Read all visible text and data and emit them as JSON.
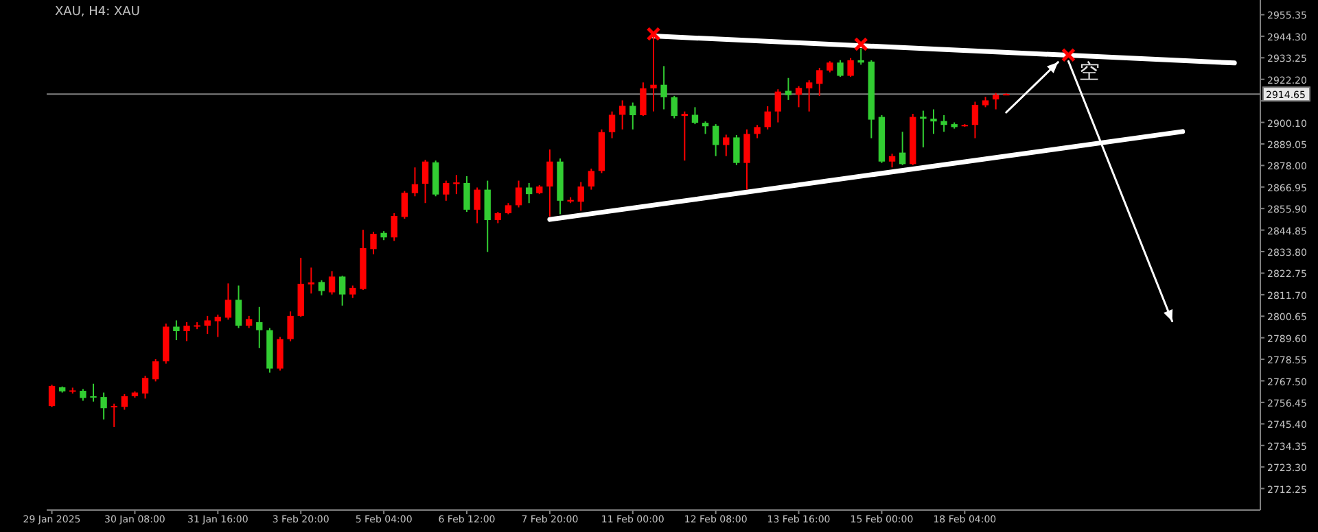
{
  "chart_data": {
    "type": "candlestick",
    "title": "XAU, H4: XAU",
    "categories": [
      "29 Jan 2025",
      null,
      null,
      null,
      null,
      null,
      null,
      null,
      "30 Jan 08:00",
      null,
      null,
      null,
      null,
      null,
      null,
      null,
      "31 Jan 16:00",
      null,
      null,
      null,
      null,
      null,
      null,
      null,
      "3 Feb 20:00",
      null,
      null,
      null,
      null,
      null,
      null,
      null,
      "5 Feb 04:00",
      null,
      null,
      null,
      null,
      null,
      null,
      null,
      "6 Feb 12:00",
      null,
      null,
      null,
      null,
      null,
      null,
      null,
      "7 Feb 20:00",
      null,
      null,
      null,
      null,
      null,
      null,
      null,
      "11 Feb 00:00",
      null,
      null,
      null,
      null,
      null,
      null,
      null,
      "12 Feb 08:00",
      null,
      null,
      null,
      null,
      null,
      null,
      null,
      "13 Feb 16:00",
      null,
      null,
      null,
      null,
      null,
      null,
      null,
      "15 Feb 00:00",
      null,
      null,
      null,
      null,
      null,
      null,
      null,
      "18 Feb 04:00",
      null,
      null,
      null,
      null,
      null,
      null,
      null,
      null,
      null,
      null,
      null,
      null,
      null,
      null,
      null,
      null,
      null,
      null,
      null,
      null,
      null,
      null,
      null,
      null,
      null,
      null,
      null,
      null
    ],
    "ohlc": [
      [
        2754.6,
        2765.5,
        2754.0,
        2764.9
      ],
      [
        2764.2,
        2764.6,
        2761.5,
        2762.1
      ],
      [
        2762.2,
        2764.0,
        2761.0,
        2762.6
      ],
      [
        2762.4,
        2763.3,
        2757.3,
        2758.7
      ],
      [
        2759.6,
        2766.0,
        2756.9,
        2758.9
      ],
      [
        2759.2,
        2761.5,
        2747.7,
        2753.5
      ],
      [
        2753.9,
        2755.8,
        2743.8,
        2754.6
      ],
      [
        2754.1,
        2760.7,
        2752.7,
        2759.6
      ],
      [
        2759.6,
        2762.1,
        2758.9,
        2761.5
      ],
      [
        2761.0,
        2770.1,
        2758.4,
        2769.0
      ],
      [
        2768.3,
        2778.6,
        2767.2,
        2777.5
      ],
      [
        2777.5,
        2796.9,
        2776.3,
        2795.3
      ],
      [
        2795.3,
        2798.5,
        2788.4,
        2793.0
      ],
      [
        2793.0,
        2797.6,
        2787.9,
        2795.8
      ],
      [
        2795.6,
        2797.6,
        2794.0,
        2796.0
      ],
      [
        2795.8,
        2800.8,
        2791.6,
        2798.5
      ],
      [
        2798.1,
        2801.5,
        2790.0,
        2800.4
      ],
      [
        2799.9,
        2817.5,
        2798.9,
        2809.1
      ],
      [
        2809.1,
        2816.4,
        2794.6,
        2795.8
      ],
      [
        2795.8,
        2800.8,
        2794.6,
        2799.2
      ],
      [
        2797.6,
        2805.4,
        2784.3,
        2793.5
      ],
      [
        2793.5,
        2794.6,
        2771.7,
        2773.8
      ],
      [
        2773.8,
        2790.0,
        2772.8,
        2788.9
      ],
      [
        2788.9,
        2803.1,
        2787.8,
        2800.8
      ],
      [
        2800.8,
        2830.6,
        2800.4,
        2817.3
      ],
      [
        2817.0,
        2825.6,
        2812.3,
        2818.0
      ],
      [
        2818.2,
        2819.1,
        2811.4,
        2813.6
      ],
      [
        2812.9,
        2823.8,
        2811.8,
        2821.0
      ],
      [
        2821.0,
        2821.4,
        2806.1,
        2811.8
      ],
      [
        2811.8,
        2816.4,
        2810.0,
        2815.2
      ],
      [
        2814.6,
        2845.0,
        2814.1,
        2835.6
      ],
      [
        2835.1,
        2844.0,
        2832.4,
        2842.9
      ],
      [
        2843.4,
        2844.3,
        2839.7,
        2841.1
      ],
      [
        2841.1,
        2853.5,
        2839.3,
        2852.1
      ],
      [
        2851.6,
        2864.9,
        2850.7,
        2864.0
      ],
      [
        2863.8,
        2877.0,
        2862.2,
        2868.4
      ],
      [
        2868.6,
        2880.9,
        2858.7,
        2880.0
      ],
      [
        2879.6,
        2880.5,
        2862.2,
        2863.1
      ],
      [
        2863.1,
        2870.2,
        2859.9,
        2869.0
      ],
      [
        2868.5,
        2873.1,
        2863.3,
        2869.3
      ],
      [
        2869.0,
        2872.5,
        2854.2,
        2855.3
      ],
      [
        2855.3,
        2866.7,
        2848.4,
        2865.6
      ],
      [
        2865.6,
        2870.2,
        2833.6,
        2850.0
      ],
      [
        2850.0,
        2854.2,
        2848.4,
        2853.5
      ],
      [
        2853.5,
        2858.7,
        2853.0,
        2857.6
      ],
      [
        2857.6,
        2870.2,
        2856.5,
        2866.7
      ],
      [
        2866.7,
        2869.0,
        2858.7,
        2863.3
      ],
      [
        2863.8,
        2867.9,
        2863.3,
        2867.2
      ],
      [
        2867.2,
        2886.2,
        2851.8,
        2880.0
      ],
      [
        2880.0,
        2881.6,
        2853.0,
        2859.9
      ],
      [
        2859.5,
        2861.7,
        2858.7,
        2860.3
      ],
      [
        2859.4,
        2869.5,
        2854.8,
        2867.2
      ],
      [
        2867.2,
        2876.4,
        2865.6,
        2875.2
      ],
      [
        2875.2,
        2896.5,
        2874.1,
        2895.1
      ],
      [
        2895.1,
        2905.7,
        2892.0,
        2904.0
      ],
      [
        2904.0,
        2911.4,
        2896.5,
        2908.6
      ],
      [
        2908.6,
        2910.3,
        2896.5,
        2903.8
      ],
      [
        2903.8,
        2920.6,
        2903.4,
        2917.6
      ],
      [
        2917.6,
        2945.5,
        2905.7,
        2919.4
      ],
      [
        2919.4,
        2929.0,
        2906.8,
        2913.0
      ],
      [
        2913.0,
        2913.7,
        2902.2,
        2903.4
      ],
      [
        2903.4,
        2905.7,
        2880.5,
        2904.5
      ],
      [
        2904.0,
        2907.9,
        2899.2,
        2899.9
      ],
      [
        2899.9,
        2900.6,
        2894.2,
        2898.1
      ],
      [
        2898.3,
        2899.2,
        2882.8,
        2888.5
      ],
      [
        2888.5,
        2893.8,
        2882.8,
        2892.4
      ],
      [
        2892.4,
        2893.6,
        2878.2,
        2879.3
      ],
      [
        2879.3,
        2896.5,
        2865.6,
        2894.2
      ],
      [
        2894.2,
        2898.8,
        2892.0,
        2897.7
      ],
      [
        2897.7,
        2908.4,
        2896.5,
        2905.7
      ],
      [
        2905.7,
        2917.1,
        2900.1,
        2915.9
      ],
      [
        2916.3,
        2922.9,
        2911.6,
        2914.1
      ],
      [
        2914.3,
        2918.7,
        2907.9,
        2917.8
      ],
      [
        2917.6,
        2921.7,
        2905.7,
        2920.6
      ],
      [
        2919.9,
        2928.1,
        2913.7,
        2926.9
      ],
      [
        2926.7,
        2931.5,
        2925.8,
        2930.8
      ],
      [
        2930.8,
        2932.0,
        2923.5,
        2924.0
      ],
      [
        2924.0,
        2933.1,
        2923.5,
        2932.0
      ],
      [
        2932.0,
        2938.0,
        2929.7,
        2930.8
      ],
      [
        2931.3,
        2932.0,
        2892.0,
        2901.5
      ],
      [
        2902.9,
        2903.8,
        2879.3,
        2880.0
      ],
      [
        2880.0,
        2884.0,
        2877.0,
        2882.8
      ],
      [
        2884.6,
        2895.3,
        2878.2,
        2878.7
      ],
      [
        2878.7,
        2904.5,
        2878.2,
        2902.9
      ],
      [
        2903.0,
        2906.1,
        2887.3,
        2902.0
      ],
      [
        2902.0,
        2906.8,
        2894.2,
        2900.6
      ],
      [
        2900.8,
        2903.8,
        2895.3,
        2898.8
      ],
      [
        2899.2,
        2900.1,
        2896.9,
        2897.7
      ],
      [
        2898.2,
        2899.2,
        2897.9,
        2898.8
      ],
      [
        2898.8,
        2910.7,
        2892.0,
        2909.1
      ],
      [
        2908.9,
        2913.2,
        2907.9,
        2911.4
      ],
      [
        2911.9,
        2915.2,
        2906.8,
        2914.3
      ],
      [
        2914.3,
        2915.0,
        2914.0,
        2914.65
      ],
      null,
      null,
      null,
      null,
      null,
      null,
      null,
      null,
      null,
      null,
      null,
      null,
      null,
      null,
      null,
      null,
      null,
      null,
      null,
      null,
      null,
      null,
      null,
      null
    ],
    "colors": [
      "#ff0000",
      "#32cd32",
      "#ff0000",
      "#32cd32",
      "#32cd32",
      "#32cd32",
      "#ff0000",
      "#ff0000",
      "#ff0000",
      "#ff0000",
      "#ff0000",
      "#ff0000",
      "#32cd32",
      "#ff0000",
      "#ff0000",
      "#ff0000",
      "#ff0000",
      "#ff0000",
      "#32cd32",
      "#ff0000",
      "#32cd32",
      "#32cd32",
      "#ff0000",
      "#ff0000",
      "#ff0000",
      "#ff0000",
      "#32cd32",
      "#ff0000",
      "#32cd32",
      "#ff0000",
      "#ff0000",
      "#ff0000",
      "#32cd32",
      "#ff0000",
      "#ff0000",
      "#ff0000",
      "#ff0000",
      "#32cd32",
      "#ff0000",
      "#ff0000",
      "#32cd32",
      "#ff0000",
      "#32cd32",
      "#ff0000",
      "#ff0000",
      "#ff0000",
      "#32cd32",
      "#ff0000",
      "#ff0000",
      "#32cd32",
      "#ff0000",
      "#ff0000",
      "#ff0000",
      "#ff0000",
      "#ff0000",
      "#ff0000",
      "#32cd32",
      "#ff0000",
      "#ff0000",
      "#32cd32",
      "#32cd32",
      "#ff0000",
      "#32cd32",
      "#32cd32",
      "#32cd32",
      "#ff0000",
      "#32cd32",
      "#ff0000",
      "#ff0000",
      "#ff0000",
      "#ff0000",
      "#32cd32",
      "#ff0000",
      "#ff0000",
      "#ff0000",
      "#ff0000",
      "#32cd32",
      "#ff0000",
      "#32cd32",
      "#32cd32",
      "#32cd32",
      "#ff0000",
      "#32cd32",
      "#ff0000",
      "#32cd32",
      "#32cd32",
      "#32cd32",
      "#32cd32",
      "#ff0000",
      "#ff0000",
      "#ff0000",
      "#ff0000",
      "#ff0000",
      null,
      null,
      null,
      null,
      null,
      null,
      null,
      null,
      null,
      null,
      null,
      null,
      null,
      null,
      null,
      null,
      null,
      null,
      null,
      null,
      null,
      null,
      null,
      null
    ],
    "series": [
      {
        "type": "line",
        "color": "#ffffff",
        "values": [
          null,
          null,
          null,
          null,
          null,
          null,
          null,
          null,
          null,
          null,
          null,
          null,
          null,
          null,
          null,
          null,
          null,
          null,
          null,
          null,
          null,
          null,
          null,
          null,
          null,
          null,
          null,
          null,
          null,
          null,
          null,
          null,
          null,
          null,
          null,
          null,
          null,
          null,
          null,
          null,
          null,
          null,
          null,
          null,
          null,
          null,
          null,
          null,
          null,
          null,
          null,
          null,
          null,
          null,
          null,
          null,
          null,
          null,
          2944.4,
          null,
          null,
          null,
          null,
          null,
          null,
          null,
          null,
          null,
          null,
          null,
          null,
          null,
          null,
          null,
          null,
          null,
          null,
          null,
          null,
          null,
          null,
          null,
          null,
          null,
          null,
          null,
          null,
          null,
          null,
          null,
          null,
          null,
          null,
          null,
          null,
          null,
          null,
          null,
          null,
          null,
          null,
          null,
          null,
          null,
          null,
          null,
          null,
          null,
          null,
          null,
          null,
          null,
          null,
          null,
          2930.6,
          null,
          null
        ]
      },
      {
        "type": "line",
        "color": "#ffffff",
        "values": [
          null,
          null,
          null,
          null,
          null,
          null,
          null,
          null,
          null,
          null,
          null,
          null,
          null,
          null,
          null,
          null,
          null,
          null,
          null,
          null,
          null,
          null,
          null,
          null,
          null,
          null,
          null,
          null,
          null,
          null,
          null,
          null,
          null,
          null,
          null,
          null,
          null,
          null,
          null,
          null,
          null,
          null,
          null,
          null,
          null,
          null,
          null,
          null,
          2850.3,
          null,
          null,
          null,
          null,
          null,
          null,
          null,
          null,
          null,
          null,
          null,
          null,
          null,
          null,
          null,
          null,
          null,
          null,
          null,
          null,
          null,
          null,
          null,
          null,
          null,
          null,
          null,
          null,
          null,
          null,
          null,
          null,
          null,
          null,
          null,
          null,
          null,
          null,
          null,
          null,
          null,
          null,
          null,
          null,
          null,
          null,
          null,
          null,
          null,
          null,
          null,
          null,
          null,
          null,
          null,
          null,
          null,
          null,
          null,
          null,
          2895.4,
          null,
          null,
          null,
          null,
          null,
          null,
          null
        ]
      },
      {
        "type": "line",
        "color": "#ffffff",
        "line_style": "solid",
        "values": [
          null,
          null,
          null,
          null,
          null,
          null,
          null,
          null,
          null,
          null,
          null,
          null,
          null,
          null,
          null,
          null,
          null,
          null,
          null,
          null,
          null,
          null,
          null,
          null,
          null,
          null,
          null,
          null,
          null,
          null,
          null,
          null,
          null,
          null,
          null,
          null,
          null,
          null,
          null,
          null,
          null,
          null,
          null,
          null,
          null,
          null,
          null,
          null,
          null,
          null,
          null,
          null,
          null,
          null,
          null,
          null,
          null,
          null,
          null,
          null,
          null,
          null,
          null,
          null,
          null,
          null,
          null,
          null,
          null,
          null,
          null,
          null,
          null,
          null,
          null,
          null,
          null,
          null,
          null,
          null,
          null,
          null,
          null,
          null,
          null,
          null,
          null,
          null,
          null,
          null,
          null,
          null,
          2905.2,
          null,
          null,
          null,
          null,
          2931.0,
          null,
          null,
          null,
          null,
          null,
          null,
          null,
          null,
          null,
          null,
          null,
          null,
          null,
          null,
          null,
          null,
          null,
          null,
          null
        ]
      },
      {
        "type": "line",
        "color": "#ffffff",
        "line_style": "solid",
        "values": [
          null,
          null,
          null,
          null,
          null,
          null,
          null,
          null,
          null,
          null,
          null,
          null,
          null,
          null,
          null,
          null,
          null,
          null,
          null,
          null,
          null,
          null,
          null,
          null,
          null,
          null,
          null,
          null,
          null,
          null,
          null,
          null,
          null,
          null,
          null,
          null,
          null,
          null,
          null,
          null,
          null,
          null,
          null,
          null,
          null,
          null,
          null,
          null,
          null,
          null,
          null,
          null,
          null,
          null,
          null,
          null,
          null,
          null,
          null,
          null,
          null,
          null,
          null,
          null,
          null,
          null,
          null,
          null,
          null,
          null,
          null,
          null,
          null,
          null,
          null,
          null,
          null,
          null,
          null,
          null,
          null,
          null,
          null,
          null,
          null,
          null,
          null,
          null,
          null,
          null,
          null,
          null,
          null,
          null,
          null,
          null,
          null,
          null,
          2931.5,
          null,
          null,
          null,
          null,
          null,
          null,
          null,
          null,
          null,
          2798.1,
          null,
          null,
          null,
          null,
          null,
          null,
          null,
          null
        ]
      },
      {
        "type": "scatter",
        "color": "#ff0000",
        "marker": "cross",
        "values": [
          null,
          null,
          null,
          null,
          null,
          null,
          null,
          null,
          null,
          null,
          null,
          null,
          null,
          null,
          null,
          null,
          null,
          null,
          null,
          null,
          null,
          null,
          null,
          null,
          null,
          null,
          null,
          null,
          null,
          null,
          null,
          null,
          null,
          null,
          null,
          null,
          null,
          null,
          null,
          null,
          null,
          null,
          null,
          null,
          null,
          null,
          null,
          null,
          null,
          null,
          null,
          null,
          null,
          null,
          null,
          null,
          null,
          null,
          2945.5,
          null,
          null,
          null,
          null,
          null,
          null,
          null,
          null,
          null,
          null,
          null,
          null,
          null,
          null,
          null,
          null,
          null,
          null,
          null,
          2940.2,
          null,
          null,
          null,
          null,
          null,
          null,
          null,
          null,
          null,
          null,
          null,
          null,
          null,
          null,
          null,
          null,
          null,
          null,
          null,
          2934.7,
          null,
          null,
          null,
          null,
          null,
          null,
          null,
          null,
          null,
          null,
          null,
          null,
          null,
          null,
          null,
          null,
          null,
          null
        ],
        "value_labels": [
          null,
          null,
          null,
          null,
          null,
          null,
          null,
          null,
          null,
          null,
          null,
          null,
          null,
          null,
          null,
          null,
          null,
          null,
          null,
          null,
          null,
          null,
          null,
          null,
          null,
          null,
          null,
          null,
          null,
          null,
          null,
          null,
          null,
          null,
          null,
          null,
          null,
          null,
          null,
          null,
          null,
          null,
          null,
          null,
          null,
          null,
          null,
          null,
          null,
          null,
          null,
          null,
          null,
          null,
          null,
          null,
          null,
          null,
          null,
          null,
          null,
          null,
          null,
          null,
          null,
          null,
          null,
          null,
          null,
          null,
          null,
          null,
          null,
          null,
          null,
          null,
          null,
          null,
          null,
          null,
          null,
          null,
          null,
          null,
          null,
          null,
          null,
          null,
          null,
          null,
          null,
          null,
          null,
          null,
          null,
          null,
          null,
          null,
          "空",
          null,
          null,
          null,
          null,
          null,
          null,
          null,
          null,
          null,
          null,
          null,
          null,
          null,
          null,
          null,
          null,
          null,
          null
        ]
      }
    ],
    "ylim": [
      2701.2,
      2962.9
    ],
    "yticks": [
      2955.35,
      {
        "value": 2944.3,
        "label": "2944.30"
      },
      2933.25,
      {
        "value": 2922.2,
        "label": "2922.20"
      },
      {
        "value": 2911.15,
        "label": null
      },
      {
        "value": 2900.1,
        "label": "2900.10"
      },
      2889.05,
      {
        "value": 2878.0,
        "label": "2878.00"
      },
      2866.95,
      {
        "value": 2855.9,
        "label": "2855.90"
      },
      2844.85,
      {
        "value": 2833.8,
        "label": "2833.80"
      },
      2822.75,
      {
        "value": 2811.7,
        "label": "2811.70"
      },
      2800.65,
      {
        "value": 2789.6,
        "label": "2789.60"
      },
      2778.55,
      {
        "value": 2767.5,
        "label": "2767.50"
      },
      2756.45,
      {
        "value": 2745.4,
        "label": "2745.40"
      },
      2734.35,
      {
        "value": 2723.3,
        "label": "2723.30"
      },
      2712.25
    ],
    "ref_lines": [
      {
        "axis": "y",
        "value": 2914.65,
        "label": "2914.65",
        "color": "#808080"
      }
    ],
    "grid": false
  }
}
